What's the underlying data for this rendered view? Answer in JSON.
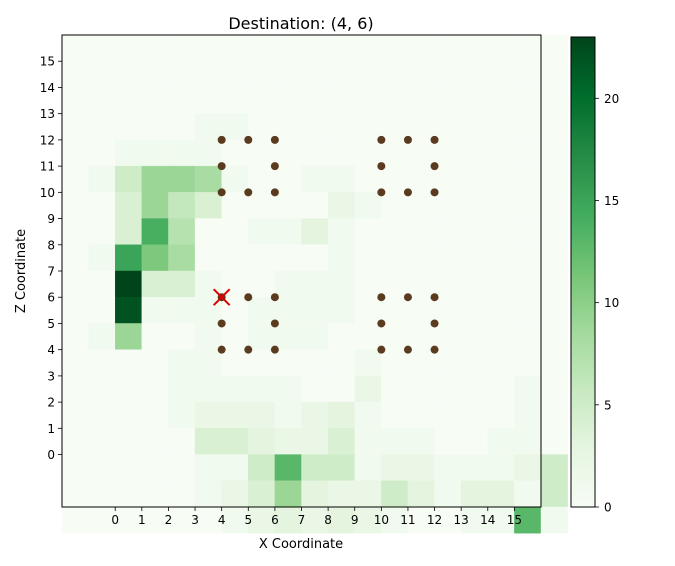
{
  "chart_data": {
    "type": "heatmap",
    "title": "Destination: (4, 6)",
    "xlabel": "X Coordinate",
    "ylabel": "Z Coordinate",
    "grid_min": -2,
    "grid_max": 16,
    "x_ticks": [
      "0",
      "1",
      "2",
      "3",
      "4",
      "5",
      "6",
      "7",
      "8",
      "9",
      "10",
      "11",
      "12",
      "13",
      "14",
      "15"
    ],
    "y_ticks": [
      "0",
      "1",
      "2",
      "3",
      "4",
      "5",
      "6",
      "7",
      "8",
      "9",
      "10",
      "11",
      "12",
      "13",
      "14",
      "15"
    ],
    "colorbar": {
      "min": 0,
      "max": 23,
      "ticks": [
        "0",
        "5",
        "10",
        "15",
        "20"
      ]
    },
    "colormap": "Greens",
    "values": [
      [
        0,
        0,
        0,
        0,
        0,
        0,
        0,
        0,
        0,
        0,
        0,
        0,
        0,
        0,
        0,
        0,
        0,
        0,
        0
      ],
      [
        0,
        0,
        0,
        0,
        0,
        0,
        0,
        0,
        0,
        0,
        0,
        0,
        0,
        0,
        0,
        0,
        0,
        0,
        0
      ],
      [
        0,
        0,
        0,
        0,
        0,
        0,
        0,
        0,
        0,
        0,
        0,
        0,
        0,
        0,
        0,
        0,
        0,
        0,
        0
      ],
      [
        0,
        0,
        0,
        0,
        0,
        1,
        1,
        0,
        0,
        0,
        0,
        0,
        0,
        0,
        0,
        0,
        0,
        0,
        0
      ],
      [
        0,
        0,
        1,
        1,
        1,
        1,
        0,
        0,
        0,
        0,
        0,
        0,
        0,
        0,
        0,
        0,
        0,
        0,
        0
      ],
      [
        0,
        1,
        5,
        9,
        9,
        8,
        1,
        0,
        0,
        1,
        1,
        0,
        0,
        0,
        0,
        0,
        0,
        0,
        0
      ],
      [
        0,
        0,
        4,
        9,
        6,
        4,
        0,
        0,
        0,
        0,
        2,
        1,
        0,
        0,
        0,
        0,
        0,
        0,
        0
      ],
      [
        0,
        0,
        4,
        14,
        7,
        0,
        0,
        1,
        1,
        3,
        1,
        0,
        0,
        0,
        0,
        0,
        0,
        0,
        0
      ],
      [
        0,
        1,
        15,
        11,
        8,
        0,
        0,
        0,
        0,
        0,
        1,
        0,
        0,
        0,
        0,
        0,
        0,
        0,
        0
      ],
      [
        0,
        0,
        23,
        4,
        4,
        1,
        0,
        0,
        1,
        1,
        1,
        0,
        0,
        0,
        0,
        0,
        0,
        0,
        0
      ],
      [
        0,
        0,
        22,
        1,
        1,
        1,
        0,
        1,
        1,
        1,
        1,
        0,
        0,
        0,
        0,
        0,
        0,
        0,
        0
      ],
      [
        0,
        1,
        9,
        0,
        0,
        1,
        0,
        1,
        1,
        1,
        0,
        0,
        0,
        0,
        0,
        0,
        0,
        0,
        0
      ],
      [
        0,
        0,
        0,
        0,
        1,
        1,
        0,
        0,
        0,
        0,
        0,
        1,
        0,
        0,
        0,
        0,
        0,
        0,
        0
      ],
      [
        0,
        0,
        0,
        0,
        1,
        1,
        1,
        1,
        1,
        0,
        0,
        2,
        0,
        0,
        0,
        0,
        0,
        1,
        0
      ],
      [
        0,
        0,
        0,
        0,
        1,
        2,
        2,
        2,
        1,
        2,
        3,
        1,
        0,
        0,
        0,
        0,
        0,
        1,
        0
      ],
      [
        0,
        0,
        0,
        0,
        0,
        4,
        4,
        3,
        2,
        2,
        4,
        1,
        1,
        1,
        0,
        0,
        1,
        1,
        0
      ],
      [
        0,
        0,
        0,
        0,
        0,
        1,
        1,
        5,
        13,
        5,
        5,
        1,
        2,
        2,
        1,
        1,
        1,
        2,
        5
      ],
      [
        0,
        0,
        0,
        0,
        0,
        1,
        2,
        4,
        9,
        3,
        2,
        2,
        5,
        3,
        1,
        3,
        3,
        1,
        5
      ],
      [
        0,
        0,
        0,
        0,
        0,
        0,
        1,
        2,
        3,
        2,
        3,
        2,
        1,
        0,
        0,
        1,
        1,
        13,
        1
      ]
    ],
    "walls": [
      [
        4,
        12
      ],
      [
        5,
        12
      ],
      [
        6,
        12
      ],
      [
        4,
        11
      ],
      [
        6,
        11
      ],
      [
        4,
        10
      ],
      [
        5,
        10
      ],
      [
        6,
        10
      ],
      [
        10,
        12
      ],
      [
        11,
        12
      ],
      [
        12,
        12
      ],
      [
        10,
        11
      ],
      [
        12,
        11
      ],
      [
        10,
        10
      ],
      [
        11,
        10
      ],
      [
        12,
        10
      ],
      [
        5,
        6
      ],
      [
        6,
        6
      ],
      [
        4,
        5
      ],
      [
        6,
        5
      ],
      [
        4,
        4
      ],
      [
        5,
        4
      ],
      [
        6,
        4
      ],
      [
        10,
        6
      ],
      [
        11,
        6
      ],
      [
        12,
        6
      ],
      [
        10,
        5
      ],
      [
        12,
        5
      ],
      [
        10,
        4
      ],
      [
        11,
        4
      ],
      [
        12,
        4
      ]
    ],
    "destination": {
      "x": 4,
      "z": 6
    },
    "wall_color": "#5b3b1f",
    "marker_color": "#dd0000"
  }
}
